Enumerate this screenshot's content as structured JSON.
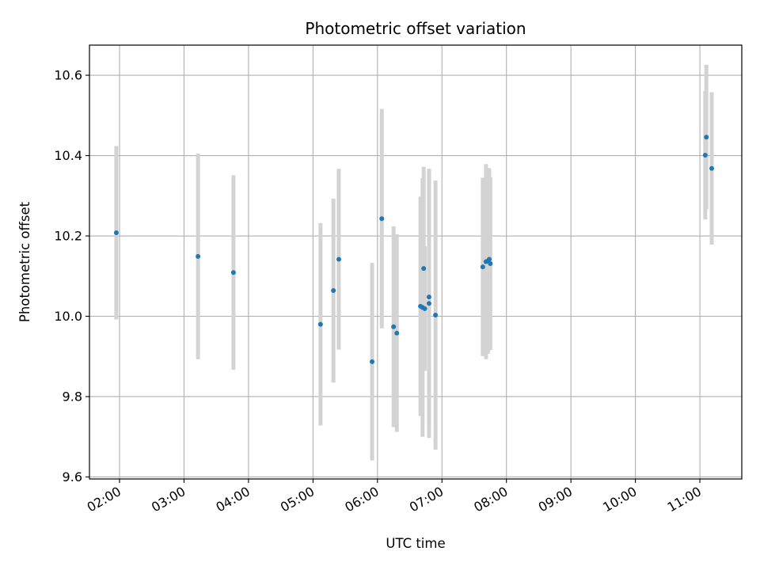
{
  "chart_data": {
    "type": "scatter",
    "title": "Photometric offset variation",
    "xlabel": "UTC time",
    "ylabel": "Photometric offset",
    "x_unit": "hours UTC",
    "xlim": [
      "01:32",
      "11:39"
    ],
    "ylim": [
      9.595,
      10.675
    ],
    "x_ticks": [
      "02:00",
      "03:00",
      "04:00",
      "05:00",
      "06:00",
      "07:00",
      "08:00",
      "09:00",
      "10:00",
      "11:00"
    ],
    "y_ticks": [
      9.6,
      9.8,
      10.0,
      10.2,
      10.4,
      10.6
    ],
    "y_tick_labels": [
      "9.6",
      "9.8",
      "10.0",
      "10.2",
      "10.4",
      "10.6"
    ],
    "grid": true,
    "marker_color": "#1f77b4",
    "errorbar_color": "#d3d3d3",
    "points": [
      {
        "x": "01:57",
        "y": 10.208,
        "yerr": 0.216
      },
      {
        "x": "03:13",
        "y": 10.149,
        "yerr": 0.256
      },
      {
        "x": "03:46",
        "y": 10.109,
        "yerr": 0.242
      },
      {
        "x": "05:07",
        "y": 9.98,
        "yerr": 0.252
      },
      {
        "x": "05:19",
        "y": 10.064,
        "yerr": 0.229
      },
      {
        "x": "05:24",
        "y": 10.142,
        "yerr": 0.225
      },
      {
        "x": "05:55",
        "y": 9.887,
        "yerr": 0.246
      },
      {
        "x": "06:04",
        "y": 10.243,
        "yerr": 0.273
      },
      {
        "x": "06:15",
        "y": 9.974,
        "yerr": 0.25
      },
      {
        "x": "06:18",
        "y": 9.958,
        "yerr": 0.246
      },
      {
        "x": "06:40",
        "y": 10.025,
        "yerr": 0.273
      },
      {
        "x": "06:42",
        "y": 10.022,
        "yerr": 0.322
      },
      {
        "x": "06:43",
        "y": 10.119,
        "yerr": 0.253
      },
      {
        "x": "06:44",
        "y": 10.019,
        "yerr": 0.155
      },
      {
        "x": "06:48",
        "y": 10.048,
        "yerr": 0.319
      },
      {
        "x": "06:48",
        "y": 10.032,
        "yerr": 0.335
      },
      {
        "x": "06:54",
        "y": 10.003,
        "yerr": 0.335
      },
      {
        "x": "07:38",
        "y": 10.123,
        "yerr": 0.222
      },
      {
        "x": "07:41",
        "y": 10.136,
        "yerr": 0.243
      },
      {
        "x": "07:43",
        "y": 10.138,
        "yerr": 0.231
      },
      {
        "x": "07:44",
        "y": 10.142,
        "yerr": 0.226
      },
      {
        "x": "07:45",
        "y": 10.131,
        "yerr": 0.215
      },
      {
        "x": "11:05",
        "y": 10.401,
        "yerr": 0.16
      },
      {
        "x": "11:06",
        "y": 10.446,
        "yerr": 0.18
      },
      {
        "x": "11:11",
        "y": 10.368,
        "yerr": 0.19
      }
    ]
  }
}
